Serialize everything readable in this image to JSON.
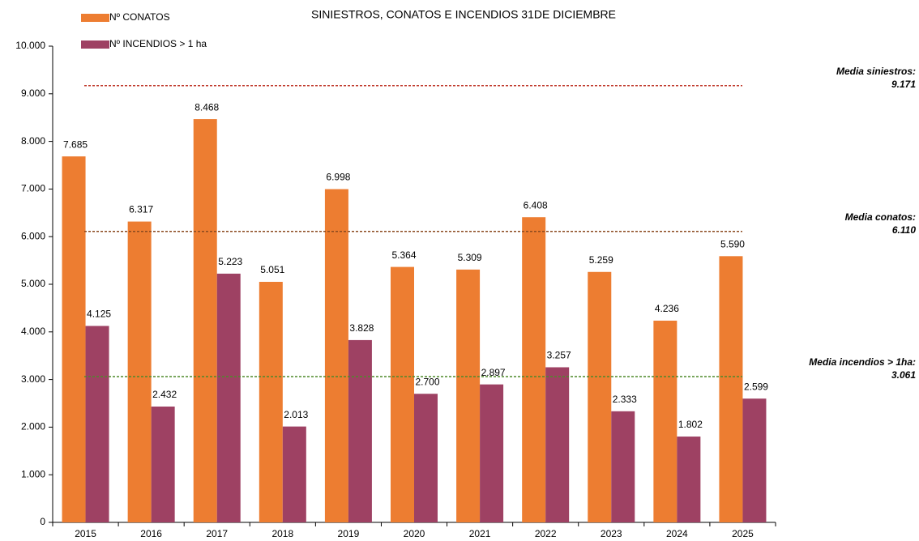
{
  "chart_data": {
    "type": "bar",
    "title": "SINIESTROS, CONATOS E INCENDIOS 31DE DICIEMBRE",
    "categories": [
      "2015",
      "2016",
      "2017",
      "2018",
      "2019",
      "2020",
      "2021",
      "2022",
      "2023",
      "2024",
      "2025"
    ],
    "series": [
      {
        "name": "Nº CONATOS",
        "color": "#ed7d31",
        "values": [
          7685,
          6317,
          8468,
          5051,
          6998,
          5364,
          5309,
          6408,
          5259,
          4236,
          5590
        ],
        "value_labels": [
          "7.685",
          "6.317",
          "8.468",
          "5.051",
          "6.998",
          "5.364",
          "5.309",
          "6.408",
          "5.259",
          "4.236",
          "5.590"
        ]
      },
      {
        "name": "Nº INCENDIOS > 1 ha",
        "color": "#9e4163",
        "values": [
          4125,
          2432,
          5223,
          2013,
          3828,
          2700,
          2897,
          3257,
          2333,
          1802,
          2599
        ],
        "value_labels": [
          "4.125",
          "2.432",
          "5.223",
          "2.013",
          "3.828",
          "2.700",
          "2.897",
          "3.257",
          "2.333",
          "1.802",
          "2.599"
        ]
      }
    ],
    "ylim": [
      0,
      10000
    ],
    "yticks": [
      0,
      {
        "value": 1000,
        "label": "1.000"
      },
      {
        "value": 2000,
        "label": "2.000"
      },
      {
        "value": 3000,
        "label": "3.000"
      },
      {
        "value": 4000,
        "label": "4.000"
      },
      {
        "value": 5000,
        "label": "5.000"
      },
      {
        "value": 6000,
        "label": "6.000"
      },
      {
        "value": 7000,
        "label": "7.000"
      },
      {
        "value": 8000,
        "label": "8.000"
      },
      {
        "value": 9000,
        "label": "9.000"
      },
      {
        "value": 10000,
        "label": "10.000"
      }
    ],
    "reference_lines": [
      {
        "label": "Media siniestros:",
        "value": 9171,
        "value_label": "9.171",
        "color": "#c0392b"
      },
      {
        "label": "Media conatos:",
        "value": 6110,
        "value_label": "6.110",
        "color": "#8b4a1f"
      },
      {
        "label": "Media incendios > 1ha:",
        "value": 3061,
        "value_label": "3.061",
        "color": "#4e8a2a"
      }
    ],
    "legend": "top-left"
  }
}
